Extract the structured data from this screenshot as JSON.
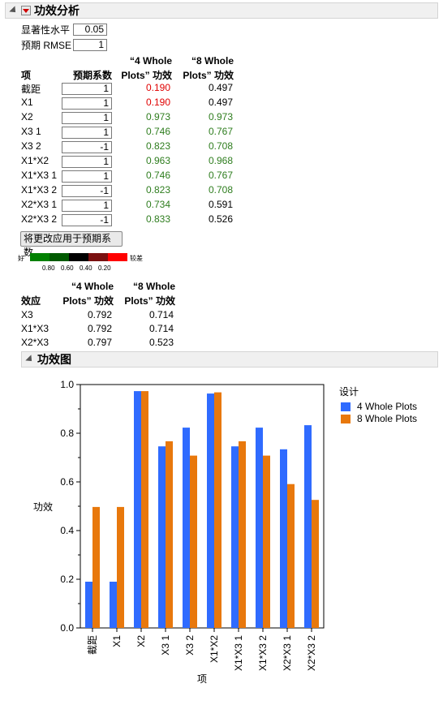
{
  "power_analysis": {
    "title": "功效分析",
    "significance_label": "显著性水平",
    "significance_value": "0.05",
    "rmse_label": "预期 RMSE",
    "rmse_value": "1",
    "table": {
      "col_term": "项",
      "col_coef": "预期系数",
      "col_4_line1": "“4 Whole",
      "col_4_line2": "Plots” 功效",
      "col_8_line1": "“8 Whole",
      "col_8_line2": "Plots” 功效",
      "rows": [
        {
          "term": "截距",
          "coef": "1",
          "p4": "0.190",
          "p8": "0.497",
          "c4": "red",
          "c8": "black"
        },
        {
          "term": "X1",
          "coef": "1",
          "p4": "0.190",
          "p8": "0.497",
          "c4": "red",
          "c8": "black"
        },
        {
          "term": "X2",
          "coef": "1",
          "p4": "0.973",
          "p8": "0.973",
          "c4": "green",
          "c8": "green"
        },
        {
          "term": "X3 1",
          "coef": "1",
          "p4": "0.746",
          "p8": "0.767",
          "c4": "green",
          "c8": "green"
        },
        {
          "term": "X3 2",
          "coef": "-1",
          "p4": "0.823",
          "p8": "0.708",
          "c4": "green",
          "c8": "green"
        },
        {
          "term": "X1*X2",
          "coef": "1",
          "p4": "0.963",
          "p8": "0.968",
          "c4": "green",
          "c8": "green"
        },
        {
          "term": "X1*X3 1",
          "coef": "1",
          "p4": "0.746",
          "p8": "0.767",
          "c4": "green",
          "c8": "green"
        },
        {
          "term": "X1*X3 2",
          "coef": "-1",
          "p4": "0.823",
          "p8": "0.708",
          "c4": "green",
          "c8": "green"
        },
        {
          "term": "X2*X3 1",
          "coef": "1",
          "p4": "0.734",
          "p8": "0.591",
          "c4": "green",
          "c8": "black"
        },
        {
          "term": "X2*X3 2",
          "coef": "-1",
          "p4": "0.833",
          "p8": "0.526",
          "c4": "green",
          "c8": "black"
        }
      ]
    },
    "apply_button": "将更改应用于预期系数",
    "colorbar": {
      "good": "好",
      "bad": "较差",
      "colors": [
        "#008000",
        "#005a00",
        "#000000",
        "#7a1010",
        "#ff0000"
      ],
      "ticks": [
        "0.80",
        "0.60",
        "0.40",
        "0.20"
      ]
    },
    "effects_table": {
      "col_effect": "效应",
      "col_4_line1": "“4 Whole",
      "col_4_line2": "Plots” 功效",
      "col_8_line1": "“8 Whole",
      "col_8_line2": "Plots” 功效",
      "rows": [
        {
          "effect": "X3",
          "p4": "0.792",
          "p8": "0.714"
        },
        {
          "effect": "X1*X3",
          "p4": "0.792",
          "p8": "0.714"
        },
        {
          "effect": "X2*X3",
          "p4": "0.797",
          "p8": "0.523"
        }
      ]
    }
  },
  "power_plot": {
    "title": "功效图",
    "legend_title": "设计",
    "chart_data": {
      "type": "bar",
      "categories": [
        "截距",
        "X1",
        "X2",
        "X3 1",
        "X3 2",
        "X1*X2",
        "X1*X3 1",
        "X1*X3 2",
        "X2*X3 1",
        "X2*X3 2"
      ],
      "series": [
        {
          "name": "4 Whole Plots",
          "color": "#2f6bff",
          "values": [
            0.19,
            0.19,
            0.973,
            0.746,
            0.823,
            0.963,
            0.746,
            0.823,
            0.734,
            0.833
          ]
        },
        {
          "name": "8 Whole Plots",
          "color": "#e8780c",
          "values": [
            0.497,
            0.497,
            0.973,
            0.767,
            0.708,
            0.968,
            0.767,
            0.708,
            0.591,
            0.526
          ]
        }
      ],
      "xlabel": "项",
      "ylabel": "功效",
      "ylim": [
        0,
        1.0
      ],
      "yticks": [
        "0.0",
        "0.2",
        "0.4",
        "0.6",
        "0.8",
        "1.0"
      ],
      "legend_position": "right"
    }
  }
}
